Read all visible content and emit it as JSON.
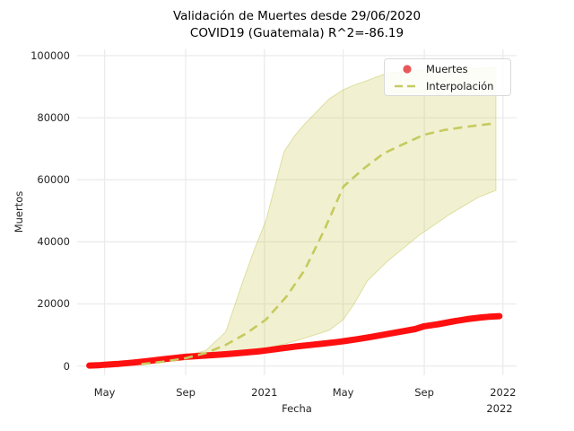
{
  "title": {
    "line1": "Validación de Muertes desde 29/06/2020",
    "line2": "COVID19 (Guatemala) R^2=-86.19"
  },
  "axes": {
    "x_label": "Fecha",
    "y_label": "Muertos",
    "x_offset_label": "2022"
  },
  "legend": {
    "items": [
      {
        "label": "Muertes",
        "marker": "dot"
      },
      {
        "label": "Interpolación",
        "marker": "dashed-line"
      }
    ]
  },
  "colors": {
    "muertes": "#ff1010",
    "interpolacion": "#c6ca5f",
    "band_fill": "rgba(202,205,85,0.27)",
    "band_edge": "rgba(190,193,75,0.45)",
    "grid": "#ebebeb",
    "text": "#262626",
    "legend_dot": "#e8575a"
  },
  "chart_data": {
    "type": "line",
    "title": "Validación de Muertes desde 29/06/2020 COVID19 (Guatemala) R^2=-86.19",
    "xlabel": "Fecha",
    "ylabel": "Muertos",
    "grid": true,
    "legend_position": "upper right",
    "xlim": [
      2020.215,
      2022.057
    ],
    "ylim": [
      -3000,
      102000
    ],
    "x_ticks": [
      {
        "x": 2020.33,
        "label": "May"
      },
      {
        "x": 2020.67,
        "label": "Sep"
      },
      {
        "x": 2021.0,
        "label": "2021"
      },
      {
        "x": 2021.33,
        "label": "May"
      },
      {
        "x": 2021.67,
        "label": "Sep"
      },
      {
        "x": 2022.0,
        "label": "2022"
      }
    ],
    "y_ticks": [
      0,
      20000,
      40000,
      60000,
      80000,
      100000
    ],
    "series": [
      {
        "name": "Muertes",
        "style": "scatter-dots",
        "color": "#ff1010",
        "points": [
          [
            2020.266,
            150
          ],
          [
            2020.304,
            250
          ],
          [
            2020.33,
            400
          ],
          [
            2020.39,
            700
          ],
          [
            2020.45,
            1100
          ],
          [
            2020.511,
            1600
          ],
          [
            2020.571,
            2150
          ],
          [
            2020.631,
            2650
          ],
          [
            2020.669,
            2950
          ],
          [
            2020.729,
            3250
          ],
          [
            2020.789,
            3550
          ],
          [
            2020.849,
            3850
          ],
          [
            2020.909,
            4250
          ],
          [
            2020.973,
            4700
          ],
          [
            2021.007,
            5000
          ],
          [
            2021.067,
            5650
          ],
          [
            2021.128,
            6250
          ],
          [
            2021.188,
            6750
          ],
          [
            2021.248,
            7250
          ],
          [
            2021.308,
            7750
          ],
          [
            2021.331,
            8000
          ],
          [
            2021.391,
            8650
          ],
          [
            2021.451,
            9400
          ],
          [
            2021.511,
            10250
          ],
          [
            2021.572,
            11100
          ],
          [
            2021.632,
            11900
          ],
          [
            2021.669,
            12800
          ],
          [
            2021.73,
            13500
          ],
          [
            2021.79,
            14350
          ],
          [
            2021.85,
            15100
          ],
          [
            2021.91,
            15650
          ],
          [
            2021.94,
            15850
          ],
          [
            2021.985,
            16050
          ]
        ]
      },
      {
        "name": "Interpolación",
        "style": "dashed",
        "color": "#c6ca5f",
        "points": [
          [
            2020.484,
            600
          ],
          [
            2020.567,
            1300
          ],
          [
            2020.669,
            2500
          ],
          [
            2020.755,
            4200
          ],
          [
            2020.838,
            6800
          ],
          [
            2020.924,
            10500
          ],
          [
            2021.007,
            15000
          ],
          [
            2021.094,
            22500
          ],
          [
            2021.169,
            31000
          ],
          [
            2021.252,
            44000
          ],
          [
            2021.331,
            57800
          ],
          [
            2021.414,
            63500
          ],
          [
            2021.5,
            68500
          ],
          [
            2021.583,
            71500
          ],
          [
            2021.669,
            74500
          ],
          [
            2021.752,
            76000
          ],
          [
            2021.839,
            77000
          ],
          [
            2021.902,
            77600
          ],
          [
            2021.97,
            78200
          ]
        ]
      },
      {
        "name": "Interpolación banda de confianza",
        "style": "band",
        "color": "rgba(202,205,85,0.27)",
        "points_lower_upper": [
          [
            2020.492,
            600,
            900
          ],
          [
            2020.642,
            2300,
            2800
          ],
          [
            2020.755,
            3600,
            5000
          ],
          [
            2020.838,
            4300,
            11000
          ],
          [
            2020.913,
            5000,
            28000
          ],
          [
            2020.96,
            5400,
            38000
          ],
          [
            2021.007,
            5800,
            47000
          ],
          [
            2021.082,
            7000,
            69000
          ],
          [
            2021.125,
            8000,
            74000
          ],
          [
            2021.169,
            9000,
            78000
          ],
          [
            2021.271,
            11500,
            86000
          ],
          [
            2021.331,
            15000,
            89000
          ],
          [
            2021.376,
            20000,
            90500
          ],
          [
            2021.432,
            27500,
            92000
          ],
          [
            2021.519,
            34000,
            94500
          ],
          [
            2021.647,
            42000,
            95200
          ],
          [
            2021.771,
            48600,
            95600
          ],
          [
            2021.895,
            54300,
            95900
          ],
          [
            2021.97,
            56600,
            96200
          ]
        ]
      }
    ]
  }
}
